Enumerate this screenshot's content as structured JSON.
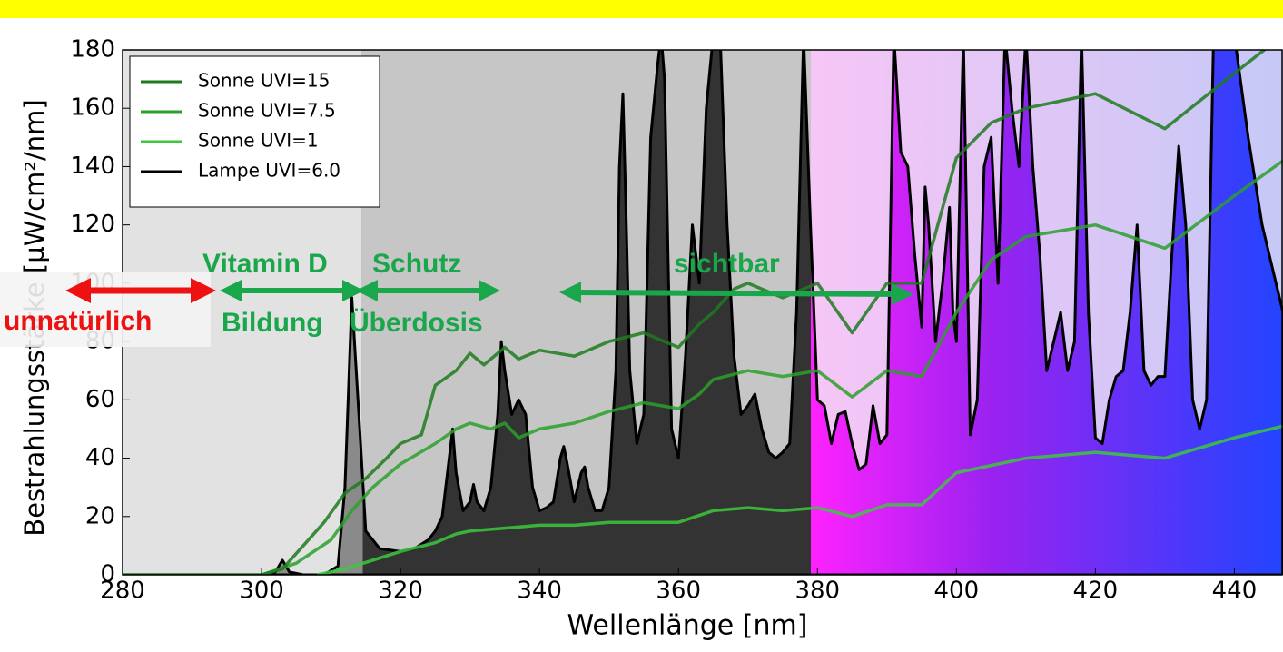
{
  "chart_data": {
    "type": "line",
    "xlabel": "Wellenlänge  [nm]",
    "ylabel": "Bestrahlungsstärke  [µW/cm²/nm]",
    "xlim": [
      280,
      447
    ],
    "ylim": [
      0,
      180
    ],
    "xticks": [
      280,
      300,
      320,
      340,
      360,
      380,
      400,
      420,
      440
    ],
    "yticks": [
      0,
      20,
      40,
      60,
      80,
      100,
      120,
      140,
      160,
      180
    ],
    "legend": "upper left",
    "series": [
      {
        "name": "Sonne UVI=15",
        "color": "#1e7a1e",
        "x": [
          280,
          300,
          303,
          306,
          309,
          312,
          315,
          318,
          320,
          323,
          325,
          328,
          330,
          332,
          335,
          337,
          340,
          345,
          350,
          355,
          358,
          360,
          363,
          365,
          368,
          370,
          372,
          375,
          378,
          380,
          385,
          390,
          395,
          400,
          405,
          410,
          420,
          430,
          440,
          447
        ],
        "values": [
          0,
          0,
          2,
          10,
          18,
          28,
          33,
          40,
          45,
          48,
          65,
          70,
          76,
          72,
          78,
          74,
          77,
          75,
          80,
          83,
          80,
          78,
          86,
          90,
          98,
          100,
          98,
          95,
          98,
          100,
          83,
          100,
          100,
          143,
          155,
          160,
          165,
          153,
          172,
          185
        ]
      },
      {
        "name": "Sonne UVI=7.5",
        "color": "#2aa02a",
        "x": [
          300,
          305,
          310,
          313,
          316,
          320,
          325,
          328,
          330,
          333,
          335,
          337,
          340,
          345,
          350,
          355,
          360,
          363,
          365,
          370,
          375,
          380,
          385,
          390,
          395,
          400,
          405,
          410,
          420,
          430,
          440,
          447
        ],
        "values": [
          0,
          4,
          12,
          22,
          30,
          38,
          45,
          50,
          52,
          50,
          52,
          47,
          50,
          52,
          56,
          59,
          57,
          62,
          67,
          70,
          68,
          70,
          61,
          70,
          68,
          90,
          108,
          116,
          120,
          112,
          130,
          142
        ]
      },
      {
        "name": "Sonne UVI=1",
        "color": "#3cc83c",
        "x": [
          308,
          312,
          316,
          320,
          325,
          328,
          330,
          335,
          340,
          345,
          350,
          355,
          360,
          365,
          370,
          375,
          380,
          385,
          390,
          395,
          400,
          410,
          420,
          430,
          440,
          447
        ],
        "values": [
          0,
          2,
          5,
          8,
          11,
          14,
          15,
          16,
          17,
          17,
          18,
          18,
          18,
          22,
          23,
          22,
          23,
          20,
          24,
          24,
          35,
          40,
          42,
          40,
          47,
          51
        ]
      },
      {
        "name": "Lampe UVI=6.0",
        "color": "#000000",
        "x": [
          280,
          300,
          302,
          303,
          304,
          306,
          309,
          311,
          312,
          313,
          314,
          315,
          317,
          320,
          322,
          324,
          325,
          326,
          327,
          327.5,
          328,
          329,
          330,
          330.5,
          331,
          332,
          333,
          334,
          334.5,
          335,
          336,
          337,
          338,
          339,
          340,
          341,
          342,
          343,
          343.5,
          344,
          345,
          346,
          346.5,
          347,
          348,
          349,
          350,
          351,
          351.5,
          352,
          352.5,
          353,
          354,
          355,
          356,
          357,
          357.5,
          358,
          358.5,
          359,
          360,
          361,
          362,
          362.5,
          363,
          364,
          365,
          366,
          367,
          368,
          369,
          370,
          371,
          372,
          373,
          374,
          375,
          376,
          377,
          378,
          379,
          380,
          381,
          382,
          383,
          384,
          385,
          386,
          387,
          388,
          389,
          390,
          391,
          392,
          393,
          394,
          395,
          395.5,
          396,
          397,
          398,
          399,
          399.5,
          400,
          401,
          402,
          403,
          404,
          405,
          406,
          407,
          408,
          409,
          410,
          411,
          412,
          413,
          414,
          415,
          416,
          417,
          418,
          419,
          420,
          421,
          422,
          423,
          424,
          425,
          426,
          426.5,
          427,
          428,
          429,
          430,
          431,
          432,
          433,
          434,
          435,
          436,
          437,
          440,
          442,
          444,
          446,
          447
        ],
        "values": [
          0,
          0,
          1,
          5,
          1,
          0,
          0,
          3,
          30,
          95,
          55,
          15,
          9,
          8,
          9,
          12,
          15,
          20,
          40,
          50,
          35,
          22,
          25,
          31,
          25,
          22,
          30,
          55,
          80,
          70,
          55,
          60,
          55,
          30,
          22,
          23,
          25,
          40,
          44,
          38,
          25,
          35,
          37,
          30,
          22,
          22,
          30,
          70,
          140,
          165,
          120,
          70,
          45,
          55,
          150,
          175,
          185,
          170,
          110,
          50,
          40,
          75,
          120,
          110,
          100,
          160,
          185,
          185,
          120,
          75,
          55,
          58,
          62,
          50,
          42,
          40,
          42,
          45,
          90,
          185,
          120,
          60,
          58,
          45,
          55,
          56,
          45,
          36,
          38,
          58,
          45,
          48,
          185,
          145,
          140,
          110,
          85,
          133,
          120,
          80,
          100,
          126,
          90,
          80,
          185,
          48,
          60,
          140,
          150,
          100,
          185,
          160,
          140,
          185,
          140,
          110,
          70,
          80,
          90,
          70,
          80,
          185,
          90,
          47,
          45,
          60,
          68,
          70,
          90,
          120,
          95,
          70,
          65,
          68,
          68,
          110,
          147,
          120,
          60,
          50,
          60,
          185,
          185,
          150,
          120,
          100,
          90
        ]
      }
    ],
    "annotations": [
      {
        "text": "Vitamin D",
        "color": "#1aa64a"
      },
      {
        "text": "Bildung",
        "color": "#1aa64a"
      },
      {
        "text": "Schutz",
        "color": "#1aa64a"
      },
      {
        "text": "Überdosis",
        "color": "#1aa64a"
      },
      {
        "text": "sichtbar",
        "color": "#1aa64a"
      },
      {
        "text": "unnatürlich",
        "color": "#ee1111"
      }
    ]
  }
}
